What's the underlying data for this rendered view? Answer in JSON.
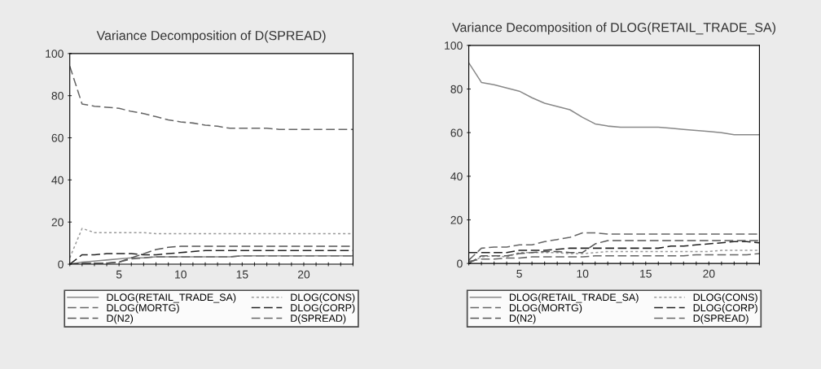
{
  "chart_data": [
    {
      "type": "line",
      "title": "Variance Decomposition of D(SPREAD)",
      "x": [
        1,
        2,
        3,
        4,
        5,
        6,
        7,
        8,
        9,
        10,
        11,
        12,
        13,
        14,
        15,
        16,
        17,
        18,
        19,
        20,
        21,
        22,
        23,
        24
      ],
      "xlim": [
        1,
        24
      ],
      "xticks": [
        {
          "value": 1,
          "label": null
        },
        {
          "value": 2,
          "label": null
        },
        {
          "value": 3,
          "label": null
        },
        {
          "value": 4,
          "label": null
        },
        5,
        {
          "value": 6,
          "label": null
        },
        {
          "value": 7,
          "label": null
        },
        {
          "value": 8,
          "label": null
        },
        {
          "value": 9,
          "label": null
        },
        10,
        {
          "value": 11,
          "label": null
        },
        {
          "value": 12,
          "label": null
        },
        {
          "value": 13,
          "label": null
        },
        {
          "value": 14,
          "label": null
        },
        15,
        {
          "value": 16,
          "label": null
        },
        {
          "value": 17,
          "label": null
        },
        {
          "value": 18,
          "label": null
        },
        {
          "value": 19,
          "label": null
        },
        20,
        {
          "value": 21,
          "label": null
        },
        {
          "value": 22,
          "label": null
        },
        {
          "value": 23,
          "label": null
        },
        {
          "value": 24,
          "label": null
        }
      ],
      "ylim": [
        0,
        100
      ],
      "yticks": [
        0,
        20,
        40,
        60,
        80,
        100
      ],
      "grid": false,
      "legend": "bottom",
      "series": [
        {
          "name": "DLOG(RETAIL_TRADE_SA)",
          "color": "#888888",
          "line_style": "solid",
          "values": [
            0,
            1,
            1.5,
            2,
            2.5,
            3,
            3,
            3.5,
            3.5,
            3.5,
            3.5,
            3.5,
            3.5,
            3.5,
            4,
            4,
            4,
            4,
            4,
            4,
            4,
            4,
            4,
            4
          ]
        },
        {
          "name": "DLOG(CONS)",
          "color": "#999999",
          "line_style": "dotted",
          "values": [
            3,
            17,
            15,
            15,
            15,
            15,
            15,
            14.5,
            14.5,
            14.5,
            14.5,
            14.5,
            14.5,
            14.5,
            14.5,
            14.5,
            14.5,
            14.5,
            14.5,
            14.5,
            14.5,
            14.5,
            14.5,
            14.5
          ]
        },
        {
          "name": "DLOG(MORTG)",
          "color": "#666666",
          "line_style": "dashed",
          "values": [
            0,
            0.5,
            0.5,
            0.5,
            1,
            2.5,
            3,
            3.5,
            3.5,
            3.5,
            3.5,
            3.5,
            3.5,
            3.5,
            4,
            4,
            4,
            4,
            4,
            4,
            4,
            4,
            4,
            4
          ]
        },
        {
          "name": "DLOG(CORP)",
          "color": "#222222",
          "line_style": "dashed",
          "values": [
            0,
            4.5,
            4.5,
            5,
            5,
            5,
            4.5,
            4.5,
            5,
            5.5,
            6,
            6.5,
            6.5,
            6.5,
            6.5,
            6.5,
            6.5,
            6.5,
            6.5,
            6.5,
            6.5,
            6.5,
            6.5,
            6.5
          ]
        },
        {
          "name": "D(N2)",
          "color": "#555555",
          "line_style": "dashed",
          "values": [
            0,
            0.5,
            0.5,
            0.5,
            1,
            3,
            5,
            7,
            8,
            8.5,
            8.5,
            8.5,
            8.5,
            8.5,
            8.5,
            8.5,
            8.5,
            8.5,
            8.5,
            8.5,
            8.5,
            8.5,
            8.5,
            8.5
          ]
        },
        {
          "name": "D(SPREAD)",
          "color": "#666666",
          "line_style": "dashed",
          "values": [
            94,
            76,
            75,
            74.5,
            74,
            72.5,
            71.5,
            70,
            68.5,
            67.5,
            67,
            66,
            65.5,
            64.5,
            64.5,
            64.5,
            64.5,
            64,
            64,
            64,
            64,
            64,
            64,
            64
          ]
        }
      ]
    },
    {
      "type": "line",
      "title": "Variance Decomposition of DLOG(RETAIL_TRADE_SA)",
      "x": [
        1,
        2,
        3,
        4,
        5,
        6,
        7,
        8,
        9,
        10,
        11,
        12,
        13,
        14,
        15,
        16,
        17,
        18,
        19,
        20,
        21,
        22,
        23,
        24
      ],
      "xlim": [
        1,
        24
      ],
      "xticks": [
        {
          "value": 1,
          "label": null
        },
        {
          "value": 2,
          "label": null
        },
        {
          "value": 3,
          "label": null
        },
        {
          "value": 4,
          "label": null
        },
        5,
        {
          "value": 6,
          "label": null
        },
        {
          "value": 7,
          "label": null
        },
        {
          "value": 8,
          "label": null
        },
        {
          "value": 9,
          "label": null
        },
        10,
        {
          "value": 11,
          "label": null
        },
        {
          "value": 12,
          "label": null
        },
        {
          "value": 13,
          "label": null
        },
        {
          "value": 14,
          "label": null
        },
        15,
        {
          "value": 16,
          "label": null
        },
        {
          "value": 17,
          "label": null
        },
        {
          "value": 18,
          "label": null
        },
        {
          "value": 19,
          "label": null
        },
        20,
        {
          "value": 21,
          "label": null
        },
        {
          "value": 22,
          "label": null
        },
        {
          "value": 23,
          "label": null
        },
        {
          "value": 24,
          "label": null
        }
      ],
      "ylim": [
        0,
        100
      ],
      "yticks": [
        0,
        20,
        40,
        60,
        80,
        100
      ],
      "grid": false,
      "legend": "bottom",
      "series": [
        {
          "name": "DLOG(RETAIL_TRADE_SA)",
          "color": "#888888",
          "line_style": "solid",
          "values": [
            92,
            83,
            82,
            80.5,
            79,
            76,
            73.5,
            72,
            70.5,
            67,
            64,
            63,
            62.5,
            62.5,
            62.5,
            62.5,
            62,
            61.5,
            61,
            60.5,
            60,
            59,
            59,
            59
          ]
        },
        {
          "name": "DLOG(CONS)",
          "color": "#999999",
          "line_style": "dotted",
          "values": [
            0,
            3,
            3.5,
            3,
            5,
            5,
            5,
            5,
            4.5,
            4.5,
            5,
            5.5,
            5.5,
            5.5,
            5.5,
            5.5,
            5.5,
            5.5,
            5.5,
            5.5,
            6,
            6,
            6,
            6
          ]
        },
        {
          "name": "DLOG(MORTG)",
          "color": "#666666",
          "line_style": "dashed",
          "values": [
            1,
            2,
            2,
            2.5,
            2.5,
            3,
            3,
            3,
            3,
            3,
            3.5,
            3.5,
            3.5,
            3.5,
            3.5,
            3.5,
            3.5,
            3.5,
            4,
            4,
            4,
            4,
            4,
            4.5
          ]
        },
        {
          "name": "DLOG(CORP)",
          "color": "#222222",
          "line_style": "dashed",
          "values": [
            5,
            5,
            5,
            5,
            6,
            6,
            6,
            6.5,
            7,
            7,
            7,
            7,
            7,
            7,
            7,
            7,
            8,
            8,
            8.5,
            9,
            9.5,
            10,
            10,
            9.5
          ]
        },
        {
          "name": "D(N2)",
          "color": "#555555",
          "line_style": "dashed",
          "values": [
            0,
            3.5,
            3.5,
            3.5,
            4.5,
            5,
            5.5,
            5.5,
            5,
            5,
            9,
            10.5,
            10.5,
            10.5,
            10.5,
            10.5,
            10.5,
            10.5,
            10.5,
            10.5,
            10.5,
            10.5,
            10.5,
            10.5
          ]
        },
        {
          "name": "D(SPREAD)",
          "color": "#666666",
          "line_style": "dashed",
          "values": [
            1.5,
            7,
            7.5,
            7.5,
            8.5,
            8.5,
            10,
            11,
            12,
            14,
            14,
            13.5,
            13.5,
            13.5,
            13.5,
            13.5,
            13.5,
            13.5,
            13.5,
            13.5,
            13.5,
            13.5,
            13.5,
            13.5
          ]
        }
      ]
    }
  ]
}
